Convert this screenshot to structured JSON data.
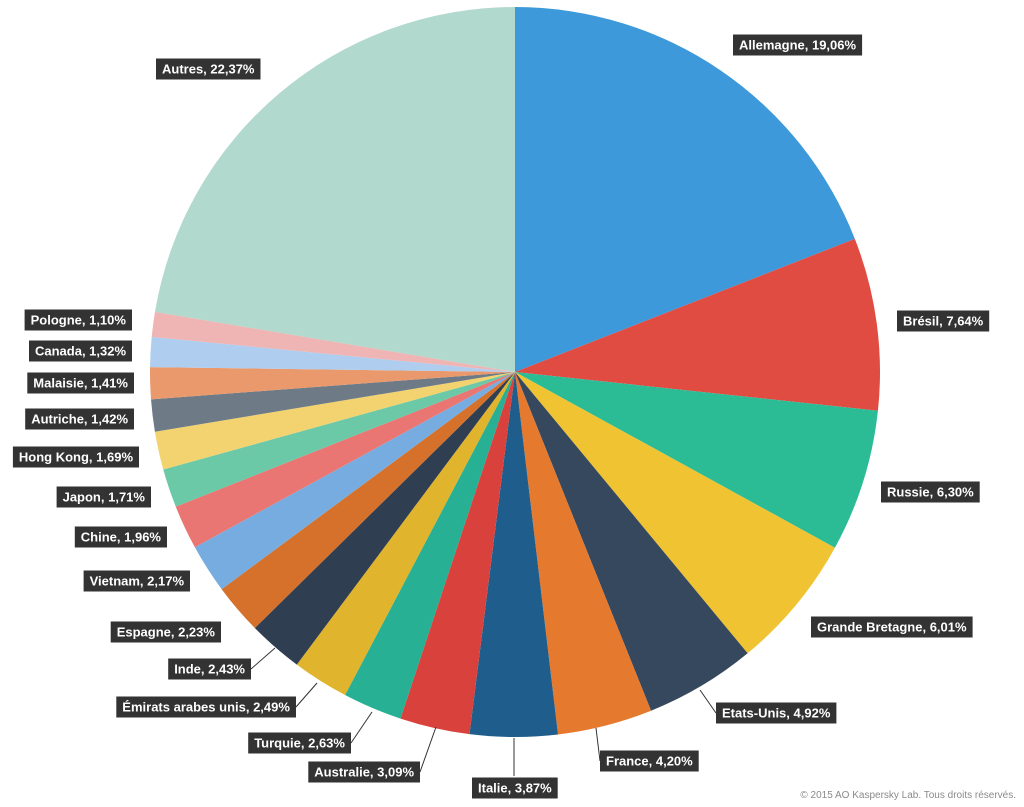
{
  "chart_data": {
    "type": "pie",
    "title": "",
    "start_angle": "top",
    "direction": "clockwise",
    "slices": [
      {
        "label": "Allemagne",
        "display": "Allemagne, 19,06%",
        "value": 19.06,
        "color": "#3d99d9"
      },
      {
        "label": "Brésil",
        "display": "Brésil, 7,64%",
        "value": 7.64,
        "color": "#e14c42"
      },
      {
        "label": "Russie",
        "display": "Russie, 6,30%",
        "value": 6.3,
        "color": "#2bbc96"
      },
      {
        "label": "Grande Bretagne",
        "display": "Grande Bretagne, 6,01%",
        "value": 6.01,
        "color": "#efc332"
      },
      {
        "label": "Etats-Unis",
        "display": "Etats-Unis, 4,92%",
        "value": 4.92,
        "color": "#36485e"
      },
      {
        "label": "France",
        "display": "France, 4,20%",
        "value": 4.2,
        "color": "#e57a2f"
      },
      {
        "label": "Italie",
        "display": "Italie, 3,87%",
        "value": 3.87,
        "color": "#1f5e8c"
      },
      {
        "label": "Australie",
        "display": "Australie, 3,09%",
        "value": 3.09,
        "color": "#d9423c"
      },
      {
        "label": "Turquie",
        "display": "Turquie,  2,63%",
        "value": 2.63,
        "color": "#27b094"
      },
      {
        "label": "Émirats arabes unis",
        "display": "Émirats arabes unis, 2,49%",
        "value": 2.49,
        "color": "#e0b42c"
      },
      {
        "label": "Inde",
        "display": "Inde, 2,43%",
        "value": 2.43,
        "color": "#2f3e51"
      },
      {
        "label": "Espagne",
        "display": "Espagne, 2,23%",
        "value": 2.23,
        "color": "#d5712a"
      },
      {
        "label": "Vietnam",
        "display": "Vietnam, 2,17%",
        "value": 2.17,
        "color": "#76acdf"
      },
      {
        "label": "Chine",
        "display": "Chine, 1,96%",
        "value": 1.96,
        "color": "#e97672"
      },
      {
        "label": "Japon",
        "display": "Japon, 1,71%",
        "value": 1.71,
        "color": "#6bc9a8"
      },
      {
        "label": "Hong Kong",
        "display": "Hong Kong, 1,69%",
        "value": 1.69,
        "color": "#f2d36f"
      },
      {
        "label": "Autriche",
        "display": "Autriche, 1,42%",
        "value": 1.42,
        "color": "#6e7a86"
      },
      {
        "label": "Malaisie",
        "display": "Malaisie, 1,41%",
        "value": 1.41,
        "color": "#e9996b"
      },
      {
        "label": "Canada",
        "display": "Canada, 1,32%",
        "value": 1.32,
        "color": "#afcdee"
      },
      {
        "label": "Pologne",
        "display": "Pologne, 1,10%",
        "value": 1.1,
        "color": "#efb4b4"
      },
      {
        "label": "Autres",
        "display": "Autres, 22,37%",
        "value": 22.37,
        "color": "#b1d9ce"
      }
    ]
  },
  "footer": {
    "copyright": "© 2015 AO Kaspersky Lab. Tous droits réservés."
  }
}
